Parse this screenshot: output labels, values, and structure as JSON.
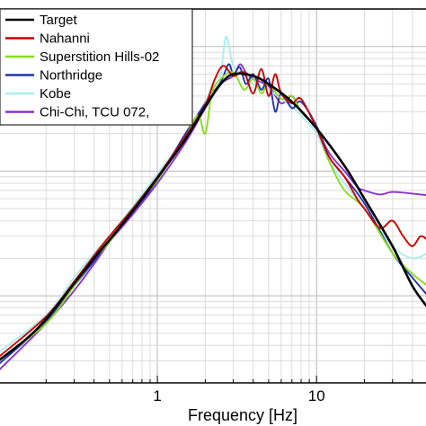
{
  "chart_data": {
    "type": "line",
    "title": "",
    "xlabel": "Frequency [Hz]",
    "ylabel": "",
    "x_scale": "log",
    "xlim": [
      0.1,
      50
    ],
    "y_scale": "log",
    "ylim": [
      0.002,
      2
    ],
    "grid": true,
    "legend_position": "top-left",
    "x_tick_labels": [
      "1",
      "10"
    ],
    "x_tick_values": [
      1,
      10
    ],
    "series": [
      {
        "name": "Target",
        "color": "#000000",
        "x": [
          0.1,
          0.15,
          0.2,
          0.3,
          0.4,
          0.5,
          0.7,
          1.0,
          1.5,
          2.0,
          2.5,
          3.0,
          4.0,
          5.0,
          7.0,
          10.0,
          15.0,
          20.0,
          30.0,
          40.0,
          50.0
        ],
        "y": [
          0.003,
          0.0045,
          0.0065,
          0.0125,
          0.02,
          0.028,
          0.048,
          0.088,
          0.18,
          0.33,
          0.5,
          0.6,
          0.58,
          0.5,
          0.36,
          0.22,
          0.11,
          0.06,
          0.025,
          0.012,
          0.008
        ]
      },
      {
        "name": "Nahanni",
        "color": "#cc0000",
        "x": [
          0.1,
          0.2,
          0.3,
          0.4,
          0.5,
          0.7,
          1.0,
          1.5,
          2.0,
          2.3,
          2.6,
          3.0,
          3.5,
          4.0,
          4.5,
          5.0,
          5.5,
          6.0,
          7.0,
          8.0,
          10.0,
          12.0,
          15.0,
          18.0,
          20.0,
          25.0,
          30.0,
          35.0,
          40.0,
          45.0,
          50.0
        ],
        "y": [
          0.0032,
          0.0068,
          0.013,
          0.021,
          0.03,
          0.05,
          0.09,
          0.19,
          0.34,
          0.55,
          0.7,
          0.58,
          0.62,
          0.42,
          0.66,
          0.4,
          0.6,
          0.42,
          0.35,
          0.38,
          0.22,
          0.13,
          0.09,
          0.06,
          0.05,
          0.035,
          0.04,
          0.03,
          0.025,
          0.03,
          0.028
        ]
      },
      {
        "name": "Superstition Hills-02",
        "color": "#88dd22",
        "x": [
          0.1,
          0.2,
          0.3,
          0.4,
          0.5,
          0.7,
          1.0,
          1.5,
          1.8,
          2.0,
          2.2,
          2.5,
          3.0,
          3.5,
          4.0,
          4.5,
          5.0,
          6.0,
          7.0,
          8.0,
          10.0,
          12.0,
          15.0,
          20.0,
          30.0,
          40.0,
          50.0
        ],
        "y": [
          0.003,
          0.006,
          0.012,
          0.02,
          0.027,
          0.05,
          0.085,
          0.19,
          0.28,
          0.2,
          0.42,
          0.55,
          0.62,
          0.45,
          0.55,
          0.42,
          0.5,
          0.38,
          0.4,
          0.3,
          0.22,
          0.12,
          0.07,
          0.05,
          0.022,
          0.015,
          0.012
        ]
      },
      {
        "name": "Northridge",
        "color": "#2233aa",
        "x": [
          0.1,
          0.2,
          0.3,
          0.4,
          0.5,
          0.7,
          1.0,
          1.5,
          2.0,
          2.5,
          2.8,
          3.0,
          3.3,
          3.6,
          4.0,
          4.5,
          5.0,
          5.5,
          6.0,
          7.0,
          8.0,
          10.0,
          12.0,
          15.0,
          20.0,
          30.0,
          40.0,
          50.0
        ],
        "y": [
          0.0028,
          0.0062,
          0.012,
          0.019,
          0.028,
          0.047,
          0.085,
          0.2,
          0.35,
          0.52,
          0.72,
          0.6,
          0.68,
          0.5,
          0.6,
          0.45,
          0.55,
          0.3,
          0.42,
          0.32,
          0.36,
          0.23,
          0.13,
          0.09,
          0.055,
          0.022,
          0.014,
          0.01
        ]
      },
      {
        "name": "Kobe",
        "color": "#aaeeee",
        "x": [
          0.1,
          0.2,
          0.3,
          0.4,
          0.5,
          0.7,
          1.0,
          1.5,
          2.0,
          2.3,
          2.5,
          2.7,
          3.0,
          3.5,
          4.0,
          5.0,
          6.0,
          7.0,
          8.0,
          10.0,
          12.0,
          15.0,
          20.0,
          30.0,
          40.0,
          50.0
        ],
        "y": [
          0.0035,
          0.007,
          0.014,
          0.022,
          0.03,
          0.052,
          0.095,
          0.19,
          0.36,
          0.55,
          0.6,
          1.2,
          0.7,
          0.6,
          0.5,
          0.45,
          0.38,
          0.33,
          0.28,
          0.2,
          0.12,
          0.08,
          0.05,
          0.025,
          0.02,
          0.022
        ]
      },
      {
        "name": "Chi-Chi, TCU 072,",
        "color": "#8833cc",
        "x": [
          0.1,
          0.2,
          0.3,
          0.4,
          0.5,
          0.7,
          1.0,
          1.5,
          2.0,
          2.5,
          3.0,
          3.3,
          3.6,
          4.0,
          5.0,
          6.0,
          7.0,
          8.0,
          10.0,
          12.0,
          15.0,
          18.0,
          20.0,
          25.0,
          30.0,
          40.0,
          50.0
        ],
        "y": [
          0.0025,
          0.006,
          0.011,
          0.018,
          0.027,
          0.045,
          0.08,
          0.17,
          0.32,
          0.5,
          0.58,
          0.72,
          0.62,
          0.55,
          0.48,
          0.35,
          0.4,
          0.3,
          0.22,
          0.14,
          0.1,
          0.075,
          0.07,
          0.065,
          0.068,
          0.066,
          0.064
        ]
      }
    ]
  }
}
